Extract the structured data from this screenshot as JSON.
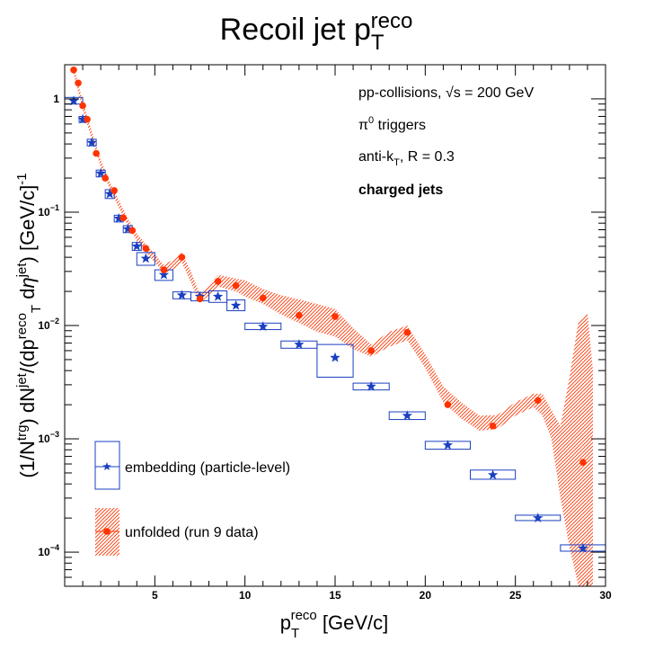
{
  "chart_data": {
    "type": "scatter",
    "title": {
      "base": "Recoil jet p",
      "sub": "T",
      "sup": "reco"
    },
    "xlabel": {
      "base": "p",
      "sub": "T",
      "sup": "reco",
      "rest": " [GeV/c]"
    },
    "ylabel": {
      "parts": [
        {
          "t": "(1/N"
        },
        {
          "t": "trg",
          "s": "sup"
        },
        {
          "t": ") dN"
        },
        {
          "t": "jet",
          "s": "sup"
        },
        {
          "t": "/(dp"
        },
        {
          "t": "reco",
          "s": "sup"
        },
        {
          "t": "T",
          "s": "sub"
        },
        {
          "t": " d"
        },
        {
          "t": "η",
          "s": "ital"
        },
        {
          "t": "jet",
          "s": "sup"
        },
        {
          "t": ") [GeV/c]"
        },
        {
          "t": "-1",
          "s": "sup"
        }
      ]
    },
    "x_scale": "linear",
    "y_scale": "log",
    "xlim": [
      0,
      30
    ],
    "ylim": [
      5e-05,
      2
    ],
    "x_ticks": [
      5,
      10,
      15,
      20,
      25,
      30
    ],
    "y_ticks": [
      {
        "value": 0.0001,
        "mant": "10",
        "exp": "−4"
      },
      {
        "value": 0.001,
        "mant": "10",
        "exp": "−3"
      },
      {
        "value": 0.01,
        "mant": "10",
        "exp": "−2"
      },
      {
        "value": 0.1,
        "mant": "10",
        "exp": "−1"
      },
      {
        "value": 1,
        "mant": "1",
        "exp": ""
      }
    ],
    "annotations": [
      {
        "parts": [
          {
            "t": "pp-collisions, "
          },
          {
            "t": "√s = 200 GeV"
          }
        ]
      },
      {
        "parts": [
          {
            "t": "π"
          },
          {
            "t": "0",
            "s": "sup"
          },
          {
            "t": " triggers"
          }
        ]
      },
      {
        "parts": [
          {
            "t": "anti-k"
          },
          {
            "t": "T",
            "s": "sub"
          },
          {
            "t": ", R = 0.3"
          }
        ]
      },
      {
        "parts": [
          {
            "t": "charged jets",
            "s": "bold"
          }
        ]
      }
    ],
    "legend_position": "bottom-left",
    "series": [
      {
        "name": "embedding (particle-level)",
        "color": "#1a3fc0",
        "marker": "star",
        "points": [
          {
            "x": 0.5,
            "y": 0.96,
            "xlo": 0.0,
            "xhi": 1.0,
            "ylo": 0.9,
            "yhi": 1.03
          },
          {
            "x": 1.0,
            "y": 0.66,
            "xlo": 0.8,
            "xhi": 1.2,
            "ylo": 0.62,
            "yhi": 0.7
          },
          {
            "x": 1.5,
            "y": 0.41,
            "xlo": 1.25,
            "xhi": 1.75,
            "ylo": 0.385,
            "yhi": 0.44
          },
          {
            "x": 2.0,
            "y": 0.22,
            "xlo": 1.75,
            "xhi": 2.25,
            "ylo": 0.205,
            "yhi": 0.235
          },
          {
            "x": 2.5,
            "y": 0.145,
            "xlo": 2.25,
            "xhi": 2.75,
            "ylo": 0.132,
            "yhi": 0.158
          },
          {
            "x": 3.0,
            "y": 0.088,
            "xlo": 2.75,
            "xhi": 3.25,
            "ylo": 0.082,
            "yhi": 0.094
          },
          {
            "x": 3.5,
            "y": 0.071,
            "xlo": 3.25,
            "xhi": 3.75,
            "ylo": 0.066,
            "yhi": 0.076
          },
          {
            "x": 4.0,
            "y": 0.05,
            "xlo": 3.75,
            "xhi": 4.25,
            "ylo": 0.046,
            "yhi": 0.054
          },
          {
            "x": 4.5,
            "y": 0.039,
            "xlo": 4.0,
            "xhi": 5.0,
            "ylo": 0.034,
            "yhi": 0.044
          },
          {
            "x": 5.5,
            "y": 0.028,
            "xlo": 5.0,
            "xhi": 6.0,
            "ylo": 0.025,
            "yhi": 0.031
          },
          {
            "x": 6.5,
            "y": 0.0185,
            "xlo": 6.0,
            "xhi": 7.0,
            "ylo": 0.0172,
            "yhi": 0.0198
          },
          {
            "x": 7.5,
            "y": 0.018,
            "xlo": 7.0,
            "xhi": 8.0,
            "ylo": 0.0165,
            "yhi": 0.0196
          },
          {
            "x": 8.5,
            "y": 0.018,
            "xlo": 8.0,
            "xhi": 9.0,
            "ylo": 0.016,
            "yhi": 0.0202
          },
          {
            "x": 9.5,
            "y": 0.015,
            "xlo": 9.0,
            "xhi": 10.0,
            "ylo": 0.0135,
            "yhi": 0.0168
          },
          {
            "x": 11.0,
            "y": 0.0098,
            "xlo": 10.0,
            "xhi": 12.0,
            "ylo": 0.0092,
            "yhi": 0.0105
          },
          {
            "x": 13.0,
            "y": 0.0068,
            "xlo": 12.0,
            "xhi": 14.0,
            "ylo": 0.0063,
            "yhi": 0.0073
          },
          {
            "x": 15.0,
            "y": 0.0052,
            "xlo": 14.0,
            "xhi": 16.0,
            "ylo": 0.0035,
            "yhi": 0.0068
          },
          {
            "x": 17.0,
            "y": 0.0029,
            "xlo": 16.0,
            "xhi": 18.0,
            "ylo": 0.0027,
            "yhi": 0.0031
          },
          {
            "x": 19.0,
            "y": 0.0016,
            "xlo": 18.0,
            "xhi": 20.0,
            "ylo": 0.00148,
            "yhi": 0.00173
          },
          {
            "x": 21.25,
            "y": 0.00088,
            "xlo": 20.0,
            "xhi": 22.5,
            "ylo": 0.00081,
            "yhi": 0.00095
          },
          {
            "x": 23.75,
            "y": 0.00048,
            "xlo": 22.5,
            "xhi": 25.0,
            "ylo": 0.00044,
            "yhi": 0.00053
          },
          {
            "x": 26.25,
            "y": 0.0002,
            "xlo": 25.0,
            "xhi": 27.5,
            "ylo": 0.00019,
            "yhi": 0.000212
          },
          {
            "x": 28.75,
            "y": 0.000108,
            "xlo": 27.5,
            "xhi": 30.0,
            "ylo": 0.000102,
            "yhi": 0.000116
          }
        ]
      },
      {
        "name": "unfolded (run 9 data)",
        "color": "#ff3300",
        "marker": "circle",
        "points": [
          {
            "x": 0.5,
            "y": 1.8
          },
          {
            "x": 0.75,
            "y": 1.38
          },
          {
            "x": 1.0,
            "y": 0.87
          },
          {
            "x": 1.25,
            "y": 0.66
          },
          {
            "x": 1.75,
            "y": 0.33
          },
          {
            "x": 2.25,
            "y": 0.2
          },
          {
            "x": 2.75,
            "y": 0.155
          },
          {
            "x": 3.25,
            "y": 0.089
          },
          {
            "x": 3.75,
            "y": 0.069
          },
          {
            "x": 4.5,
            "y": 0.048
          },
          {
            "x": 5.5,
            "y": 0.031
          },
          {
            "x": 6.5,
            "y": 0.04
          },
          {
            "x": 7.5,
            "y": 0.0172
          },
          {
            "x": 8.5,
            "y": 0.0245
          },
          {
            "x": 9.5,
            "y": 0.0225
          },
          {
            "x": 11.0,
            "y": 0.0175
          },
          {
            "x": 13.0,
            "y": 0.0123
          },
          {
            "x": 15.0,
            "y": 0.012
          },
          {
            "x": 17.0,
            "y": 0.006
          },
          {
            "x": 19.0,
            "y": 0.0087
          },
          {
            "x": 21.25,
            "y": 0.002
          },
          {
            "x": 23.75,
            "y": 0.0013
          },
          {
            "x": 26.25,
            "y": 0.00218
          },
          {
            "x": 28.75,
            "y": 0.00062
          }
        ],
        "band": [
          {
            "x": 0.5,
            "lo": 1.65,
            "hi": 1.95
          },
          {
            "x": 1.0,
            "lo": 0.8,
            "hi": 0.95
          },
          {
            "x": 1.5,
            "lo": 0.44,
            "hi": 0.52
          },
          {
            "x": 2.0,
            "lo": 0.25,
            "hi": 0.29
          },
          {
            "x": 2.5,
            "lo": 0.16,
            "hi": 0.185
          },
          {
            "x": 3.0,
            "lo": 0.11,
            "hi": 0.128
          },
          {
            "x": 3.5,
            "lo": 0.076,
            "hi": 0.088
          },
          {
            "x": 4.0,
            "lo": 0.056,
            "hi": 0.065
          },
          {
            "x": 4.5,
            "lo": 0.044,
            "hi": 0.052
          },
          {
            "x": 5.0,
            "lo": 0.036,
            "hi": 0.043
          },
          {
            "x": 5.5,
            "lo": 0.029,
            "hi": 0.034
          },
          {
            "x": 6.0,
            "lo": 0.031,
            "hi": 0.038
          },
          {
            "x": 6.5,
            "lo": 0.036,
            "hi": 0.044
          },
          {
            "x": 7.0,
            "lo": 0.024,
            "hi": 0.03
          },
          {
            "x": 7.5,
            "lo": 0.0158,
            "hi": 0.0188
          },
          {
            "x": 8.0,
            "lo": 0.0185,
            "hi": 0.023
          },
          {
            "x": 8.5,
            "lo": 0.022,
            "hi": 0.028
          },
          {
            "x": 9.0,
            "lo": 0.021,
            "hi": 0.027
          },
          {
            "x": 9.5,
            "lo": 0.02,
            "hi": 0.026
          },
          {
            "x": 10.0,
            "lo": 0.018,
            "hi": 0.025
          },
          {
            "x": 11.0,
            "lo": 0.0155,
            "hi": 0.021
          },
          {
            "x": 12.0,
            "lo": 0.0125,
            "hi": 0.0185
          },
          {
            "x": 13.0,
            "lo": 0.0105,
            "hi": 0.017
          },
          {
            "x": 14.0,
            "lo": 0.0088,
            "hi": 0.0155
          },
          {
            "x": 15.0,
            "lo": 0.008,
            "hi": 0.014
          },
          {
            "x": 16.0,
            "lo": 0.0062,
            "hi": 0.0095
          },
          {
            "x": 17.0,
            "lo": 0.0053,
            "hi": 0.0068
          },
          {
            "x": 18.0,
            "lo": 0.0065,
            "hi": 0.0088
          },
          {
            "x": 19.0,
            "lo": 0.0074,
            "hi": 0.01
          },
          {
            "x": 20.0,
            "lo": 0.0042,
            "hi": 0.0056
          },
          {
            "x": 21.0,
            "lo": 0.0021,
            "hi": 0.0029
          },
          {
            "x": 22.0,
            "lo": 0.0015,
            "hi": 0.0021
          },
          {
            "x": 23.0,
            "lo": 0.00118,
            "hi": 0.0016
          },
          {
            "x": 24.0,
            "lo": 0.00122,
            "hi": 0.00162
          },
          {
            "x": 25.0,
            "lo": 0.0016,
            "hi": 0.0021
          },
          {
            "x": 26.0,
            "lo": 0.0019,
            "hi": 0.0025
          },
          {
            "x": 26.5,
            "lo": 0.0016,
            "hi": 0.0025
          },
          {
            "x": 27.0,
            "lo": 0.001,
            "hi": 0.0018
          },
          {
            "x": 27.5,
            "lo": 0.0003,
            "hi": 0.0013
          },
          {
            "x": 28.0,
            "lo": 0.00011,
            "hi": 0.0035
          },
          {
            "x": 28.5,
            "lo": 5e-05,
            "hi": 0.011
          },
          {
            "x": 29.0,
            "lo": 5e-05,
            "hi": 0.013
          },
          {
            "x": 29.3,
            "lo": 5e-05,
            "hi": 0.004
          }
        ]
      }
    ]
  }
}
